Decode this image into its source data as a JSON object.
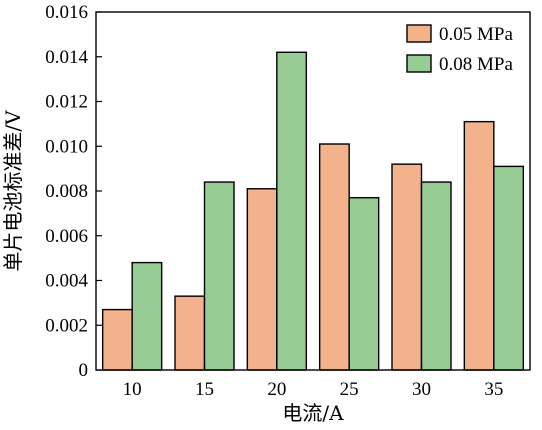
{
  "chart_data": {
    "type": "bar",
    "title": "",
    "xlabel": "电流/A",
    "ylabel": "单片电池标准差/V",
    "categories": [
      "10",
      "15",
      "20",
      "25",
      "30",
      "35"
    ],
    "series": [
      {
        "name": "0.05 MPa",
        "color": "#f4b28c",
        "values": [
          0.0027,
          0.0033,
          0.0081,
          0.0101,
          0.0092,
          0.0111
        ]
      },
      {
        "name": "0.08 MPa",
        "color": "#97cc94",
        "values": [
          0.0048,
          0.0084,
          0.0142,
          0.0077,
          0.0084,
          0.0091
        ]
      }
    ],
    "ylim": [
      0,
      0.016
    ],
    "y_ticks": [
      "0",
      "0.002",
      "0.004",
      "0.006",
      "0.008",
      "0.010",
      "0.012",
      "0.014",
      "0.016"
    ],
    "grid": false,
    "legend_position": "top-right"
  }
}
